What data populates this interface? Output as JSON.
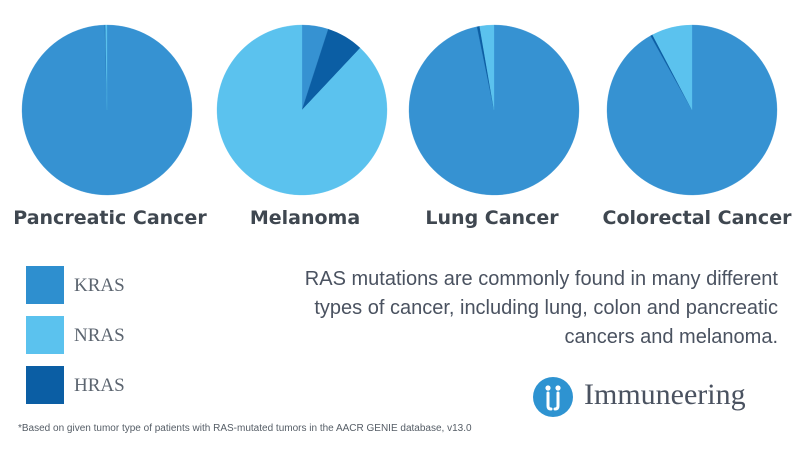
{
  "chart_data": [
    {
      "type": "pie",
      "title": "Pancreatic Cancer",
      "slices": [
        {
          "label": "KRAS",
          "value": 99.6
        },
        {
          "label": "NRAS",
          "value": 0.3
        },
        {
          "label": "HRAS",
          "value": 0.1
        }
      ]
    },
    {
      "type": "pie",
      "title": "Melanoma",
      "slices": [
        {
          "label": "KRAS",
          "value": 5
        },
        {
          "label": "NRAS",
          "value": 88
        },
        {
          "label": "HRAS",
          "value": 7
        }
      ]
    },
    {
      "type": "pie",
      "title": "Lung Cancer",
      "slices": [
        {
          "label": "KRAS",
          "value": 96.8
        },
        {
          "label": "NRAS",
          "value": 2.7
        },
        {
          "label": "HRAS",
          "value": 0.5
        }
      ]
    },
    {
      "type": "pie",
      "title": "Colorectal Cancer",
      "slices": [
        {
          "label": "KRAS",
          "value": 91.9
        },
        {
          "label": "NRAS",
          "value": 7.7
        },
        {
          "label": "HRAS",
          "value": 0.4
        }
      ]
    }
  ],
  "legend": [
    {
      "label": "KRAS",
      "color": "#2e8fcf"
    },
    {
      "label": "NRAS",
      "color": "#5bc2ee"
    },
    {
      "label": "HRAS",
      "color": "#0b5ea4"
    }
  ],
  "slice_colors": {
    "KRAS": "#3692d2",
    "NRAS": "#5bc2ee",
    "HRAS": "#0b5ea4"
  },
  "description": "RAS mutations are commonly found in many different types of cancer, including lung, colon and pancreatic cancers and melanoma.",
  "logo": {
    "name": "Immuneering",
    "mark_color": "#2e93d1",
    "icon": "immuneering-logo-icon"
  },
  "footnote": "*Based on given tumor type of patients with RAS-mutated tumors in the AACR GENIE database, v13.0"
}
